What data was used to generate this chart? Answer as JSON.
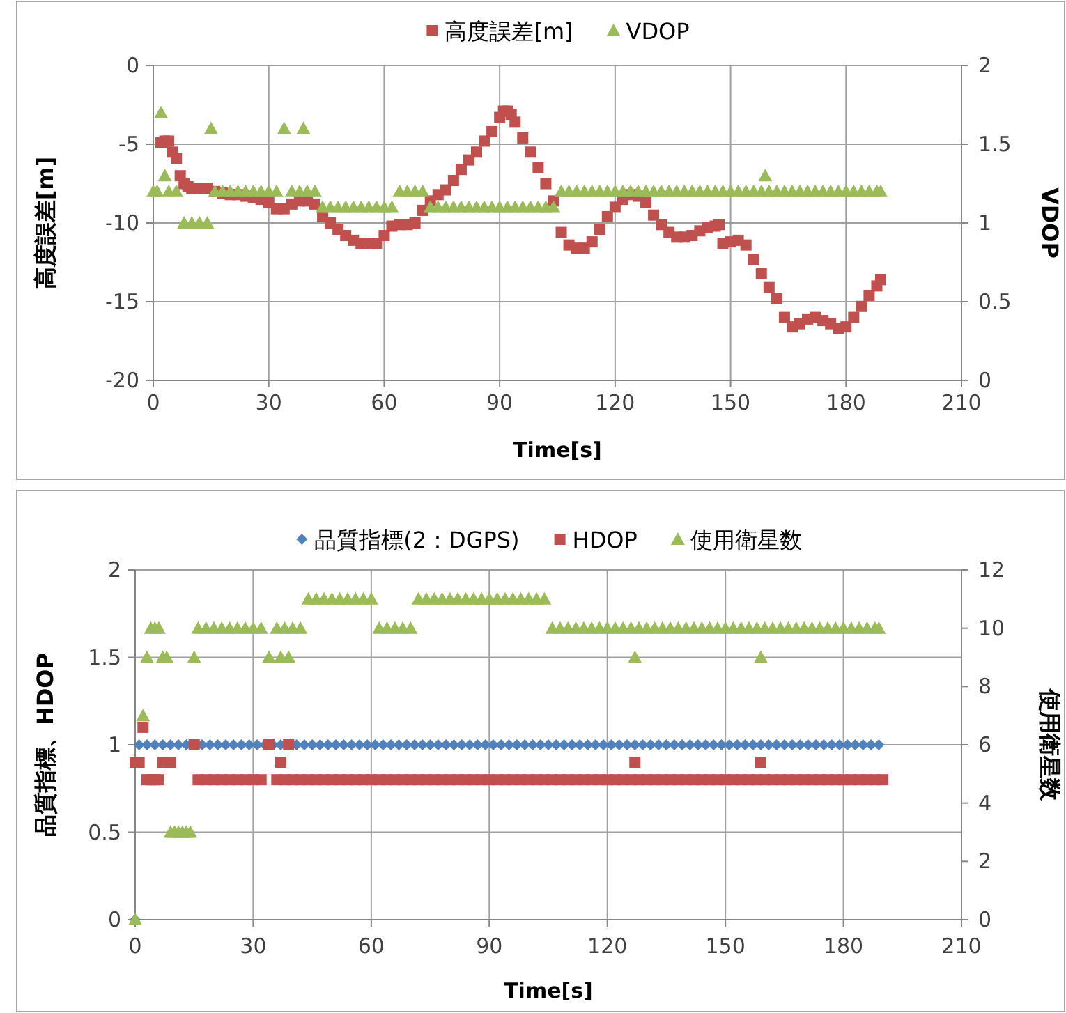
{
  "chart_data": [
    {
      "type": "scatter",
      "xlabel": "Time[s]",
      "ylabel": "高度誤差[m]",
      "y2label": "VDOP",
      "xlim": [
        0,
        210
      ],
      "xticks": [
        0,
        30,
        60,
        90,
        120,
        150,
        180,
        210
      ],
      "ylim": [
        -20,
        0
      ],
      "yticks": [
        -20,
        -15,
        -10,
        -5,
        0
      ],
      "y2lim": [
        0,
        2
      ],
      "y2ticks": [
        0,
        0.5,
        1,
        1.5,
        2
      ],
      "grid": true,
      "legend": "top",
      "series": [
        {
          "name": "高度誤差[m]",
          "color": "#c0504d",
          "marker": "square",
          "x": [
            2,
            3,
            4,
            5,
            6,
            7,
            8,
            9,
            10,
            12,
            14,
            16,
            18,
            20,
            22,
            24,
            26,
            28,
            30,
            32,
            34,
            36,
            38,
            40,
            42,
            44,
            46,
            48,
            50,
            52,
            54,
            56,
            58,
            60,
            62,
            64,
            66,
            68,
            70,
            72,
            74,
            76,
            78,
            80,
            82,
            84,
            86,
            88,
            90,
            91,
            92,
            93,
            94,
            96,
            98,
            100,
            102,
            104,
            106,
            108,
            110,
            112,
            114,
            116,
            118,
            120,
            122,
            124,
            126,
            128,
            130,
            132,
            134,
            136,
            138,
            140,
            142,
            144,
            146,
            147,
            148,
            150,
            152,
            154,
            156,
            158,
            160,
            162,
            164,
            166,
            168,
            170,
            172,
            174,
            176,
            178,
            180,
            182,
            184,
            186,
            188,
            189
          ],
          "values": [
            -4.9,
            -4.8,
            -4.8,
            -5.5,
            -5.9,
            -7.0,
            -7.5,
            -7.7,
            -7.8,
            -7.8,
            -7.8,
            -8.0,
            -8.1,
            -8.2,
            -8.2,
            -8.3,
            -8.4,
            -8.5,
            -8.7,
            -9.1,
            -9.1,
            -8.8,
            -8.6,
            -8.6,
            -8.8,
            -9.6,
            -10.0,
            -10.4,
            -10.8,
            -11.1,
            -11.3,
            -11.3,
            -11.3,
            -10.8,
            -10.2,
            -10.1,
            -10.1,
            -10.0,
            -9.2,
            -8.6,
            -8.2,
            -7.9,
            -7.3,
            -6.6,
            -6.0,
            -5.5,
            -4.8,
            -4.2,
            -3.3,
            -2.9,
            -2.9,
            -3.1,
            -3.6,
            -4.6,
            -5.5,
            -6.5,
            -7.5,
            -8.6,
            -10.6,
            -11.4,
            -11.6,
            -11.6,
            -11.2,
            -10.4,
            -9.6,
            -9.0,
            -8.5,
            -8.2,
            -8.3,
            -8.7,
            -9.5,
            -10.1,
            -10.6,
            -10.9,
            -10.9,
            -10.8,
            -10.5,
            -10.3,
            -10.2,
            -10.1,
            -11.3,
            -11.2,
            -11.1,
            -11.4,
            -12.3,
            -13.2,
            -14.1,
            -14.8,
            -16.0,
            -16.6,
            -16.4,
            -16.1,
            -16.0,
            -16.2,
            -16.4,
            -16.7,
            -16.6,
            -16.0,
            -15.3,
            -14.6,
            -14.0,
            -13.6
          ]
        },
        {
          "name": "VDOP",
          "color": "#9bbb59",
          "marker": "triangle",
          "axis": "y2",
          "x": [
            0,
            1,
            2,
            3,
            4,
            6,
            8,
            10,
            12,
            14,
            15,
            16,
            18,
            20,
            22,
            24,
            26,
            28,
            30,
            32,
            34,
            36,
            38,
            39,
            40,
            42,
            44,
            46,
            48,
            50,
            52,
            54,
            56,
            58,
            60,
            62,
            64,
            66,
            68,
            70,
            72,
            74,
            76,
            78,
            80,
            82,
            84,
            86,
            88,
            90,
            92,
            94,
            96,
            98,
            100,
            102,
            104,
            106,
            108,
            110,
            112,
            114,
            116,
            118,
            120,
            122,
            124,
            126,
            128,
            130,
            132,
            134,
            136,
            138,
            140,
            142,
            144,
            146,
            148,
            150,
            152,
            154,
            156,
            158,
            159,
            160,
            162,
            164,
            166,
            168,
            170,
            172,
            174,
            176,
            178,
            180,
            182,
            184,
            186,
            188,
            189
          ],
          "values": [
            1.2,
            1.2,
            1.7,
            1.3,
            1.2,
            1.2,
            1.0,
            1.0,
            1.0,
            1.0,
            1.6,
            1.2,
            1.2,
            1.2,
            1.2,
            1.2,
            1.2,
            1.2,
            1.2,
            1.2,
            1.6,
            1.2,
            1.2,
            1.6,
            1.2,
            1.2,
            1.1,
            1.1,
            1.1,
            1.1,
            1.1,
            1.1,
            1.1,
            1.1,
            1.1,
            1.1,
            1.2,
            1.2,
            1.2,
            1.2,
            1.1,
            1.1,
            1.1,
            1.1,
            1.1,
            1.1,
            1.1,
            1.1,
            1.1,
            1.1,
            1.1,
            1.1,
            1.1,
            1.1,
            1.1,
            1.1,
            1.1,
            1.2,
            1.2,
            1.2,
            1.2,
            1.2,
            1.2,
            1.2,
            1.2,
            1.2,
            1.2,
            1.2,
            1.2,
            1.2,
            1.2,
            1.2,
            1.2,
            1.2,
            1.2,
            1.2,
            1.2,
            1.2,
            1.2,
            1.2,
            1.2,
            1.2,
            1.2,
            1.2,
            1.3,
            1.2,
            1.2,
            1.2,
            1.2,
            1.2,
            1.2,
            1.2,
            1.2,
            1.2,
            1.2,
            1.2,
            1.2,
            1.2,
            1.2,
            1.2,
            1.2
          ]
        }
      ]
    },
    {
      "type": "scatter",
      "xlabel": "Time[s]",
      "ylabel": "品質指標、HDOP",
      "y2label": "使用衛星数",
      "xlim": [
        0,
        210
      ],
      "xticks": [
        0,
        30,
        60,
        90,
        120,
        150,
        180,
        210
      ],
      "ylim": [
        0,
        2
      ],
      "yticks": [
        0,
        0.5,
        1,
        1.5,
        2
      ],
      "y2lim": [
        0,
        12
      ],
      "y2ticks": [
        0,
        2,
        4,
        6,
        8,
        10,
        12
      ],
      "grid": true,
      "legend": "top",
      "series": [
        {
          "name": "品質指標(2：DGPS)",
          "color": "#4f81bd",
          "marker": "diamond",
          "x": [
            0,
            1,
            3,
            5,
            7,
            9,
            11,
            13,
            17,
            19,
            21,
            23,
            25,
            27,
            29,
            31,
            33,
            35,
            37,
            41,
            43,
            45,
            47,
            49,
            51,
            53,
            55,
            57,
            59,
            61,
            63,
            65,
            67,
            69,
            71,
            73,
            75,
            77,
            79,
            81,
            83,
            85,
            87,
            89,
            91,
            93,
            95,
            97,
            99,
            101,
            103,
            105,
            107,
            109,
            111,
            113,
            115,
            117,
            119,
            121,
            123,
            125,
            127,
            129,
            131,
            133,
            135,
            137,
            139,
            141,
            143,
            145,
            147,
            149,
            151,
            153,
            155,
            157,
            159,
            161,
            163,
            165,
            167,
            169,
            171,
            173,
            175,
            177,
            179,
            181,
            183,
            185,
            187,
            189
          ],
          "values": [
            0,
            1,
            1,
            1,
            1,
            1,
            1,
            1,
            1,
            1,
            1,
            1,
            1,
            1,
            1,
            1,
            1,
            1,
            1,
            1,
            1,
            1,
            1,
            1,
            1,
            1,
            1,
            1,
            1,
            1,
            1,
            1,
            1,
            1,
            1,
            1,
            1,
            1,
            1,
            1,
            1,
            1,
            1,
            1,
            1,
            1,
            1,
            1,
            1,
            1,
            1,
            1,
            1,
            1,
            1,
            1,
            1,
            1,
            1,
            1,
            1,
            1,
            1,
            1,
            1,
            1,
            1,
            1,
            1,
            1,
            1,
            1,
            1,
            1,
            1,
            1,
            1,
            1,
            1,
            1,
            1,
            1,
            1,
            1,
            1,
            1,
            1,
            1,
            1,
            1,
            1,
            1,
            1,
            1
          ]
        },
        {
          "name": "HDOP",
          "color": "#c0504d",
          "marker": "square",
          "x": [
            0,
            1,
            2,
            3,
            4,
            5,
            6,
            7,
            8,
            9,
            15,
            16,
            18,
            20,
            22,
            24,
            26,
            28,
            30,
            32,
            34,
            36,
            37,
            38,
            39,
            40,
            42,
            44,
            46,
            48,
            50,
            52,
            54,
            56,
            58,
            60,
            62,
            64,
            66,
            68,
            70,
            72,
            74,
            76,
            78,
            80,
            82,
            84,
            86,
            88,
            90,
            92,
            94,
            96,
            98,
            100,
            102,
            104,
            106,
            108,
            110,
            112,
            114,
            116,
            118,
            120,
            122,
            124,
            126,
            127,
            128,
            130,
            132,
            134,
            136,
            138,
            140,
            142,
            144,
            146,
            148,
            150,
            152,
            154,
            156,
            158,
            159,
            160,
            162,
            164,
            166,
            168,
            170,
            172,
            174,
            176,
            178,
            180,
            182,
            184,
            186,
            188,
            190
          ],
          "values": [
            0.9,
            0.9,
            1.1,
            0.8,
            0.8,
            0.8,
            0.8,
            0.9,
            0.9,
            0.9,
            1.0,
            0.8,
            0.8,
            0.8,
            0.8,
            0.8,
            0.8,
            0.8,
            0.8,
            0.8,
            1.0,
            0.8,
            0.9,
            0.8,
            1.0,
            0.8,
            0.8,
            0.8,
            0.8,
            0.8,
            0.8,
            0.8,
            0.8,
            0.8,
            0.8,
            0.8,
            0.8,
            0.8,
            0.8,
            0.8,
            0.8,
            0.8,
            0.8,
            0.8,
            0.8,
            0.8,
            0.8,
            0.8,
            0.8,
            0.8,
            0.8,
            0.8,
            0.8,
            0.8,
            0.8,
            0.8,
            0.8,
            0.8,
            0.8,
            0.8,
            0.8,
            0.8,
            0.8,
            0.8,
            0.8,
            0.8,
            0.8,
            0.8,
            0.8,
            0.9,
            0.8,
            0.8,
            0.8,
            0.8,
            0.8,
            0.8,
            0.8,
            0.8,
            0.8,
            0.8,
            0.8,
            0.8,
            0.8,
            0.8,
            0.8,
            0.8,
            0.9,
            0.8,
            0.8,
            0.8,
            0.8,
            0.8,
            0.8,
            0.8,
            0.8,
            0.8,
            0.8,
            0.8,
            0.8,
            0.8,
            0.8,
            0.8,
            0.8
          ]
        },
        {
          "name": "使用衛星数",
          "color": "#9bbb59",
          "marker": "triangle",
          "axis": "y2",
          "x": [
            0,
            2,
            3,
            4,
            5,
            6,
            7,
            8,
            9,
            10,
            11,
            12,
            13,
            14,
            15,
            16,
            18,
            20,
            22,
            24,
            26,
            28,
            30,
            32,
            34,
            36,
            37,
            38,
            39,
            40,
            42,
            44,
            46,
            48,
            50,
            52,
            54,
            56,
            58,
            60,
            62,
            64,
            66,
            68,
            70,
            72,
            74,
            76,
            78,
            80,
            82,
            84,
            86,
            88,
            90,
            92,
            94,
            96,
            98,
            100,
            102,
            104,
            106,
            108,
            110,
            112,
            114,
            116,
            118,
            120,
            122,
            124,
            126,
            127,
            128,
            130,
            132,
            134,
            136,
            138,
            140,
            142,
            144,
            146,
            148,
            150,
            152,
            154,
            156,
            158,
            159,
            160,
            162,
            164,
            166,
            168,
            170,
            172,
            174,
            176,
            178,
            180,
            182,
            184,
            186,
            188,
            189
          ],
          "values": [
            0,
            7,
            9,
            10,
            10,
            10,
            9,
            9,
            3,
            3,
            3,
            3,
            3,
            3,
            9,
            10,
            10,
            10,
            10,
            10,
            10,
            10,
            10,
            10,
            9,
            10,
            9,
            10,
            9,
            10,
            10,
            11,
            11,
            11,
            11,
            11,
            11,
            11,
            11,
            11,
            10,
            10,
            10,
            10,
            10,
            11,
            11,
            11,
            11,
            11,
            11,
            11,
            11,
            11,
            11,
            11,
            11,
            11,
            11,
            11,
            11,
            11,
            10,
            10,
            10,
            10,
            10,
            10,
            10,
            10,
            10,
            10,
            10,
            9,
            10,
            10,
            10,
            10,
            10,
            10,
            10,
            10,
            10,
            10,
            10,
            10,
            10,
            10,
            10,
            10,
            9,
            10,
            10,
            10,
            10,
            10,
            10,
            10,
            10,
            10,
            10,
            10,
            10,
            10,
            10,
            10,
            10
          ]
        }
      ]
    }
  ]
}
